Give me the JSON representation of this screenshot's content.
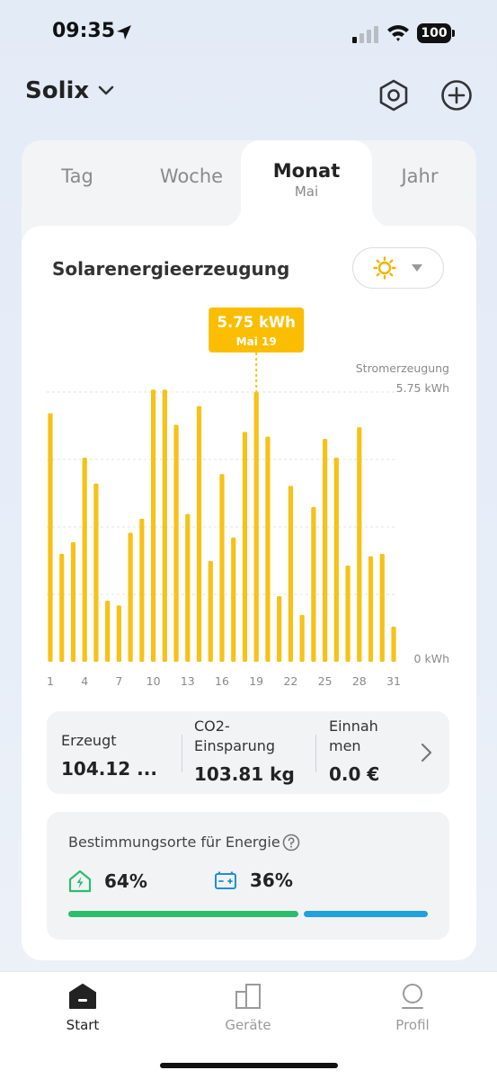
{
  "status_bar": {
    "time": "09:35",
    "battery": "100",
    "icons": [
      "location-arrow-icon",
      "cellular-signal-icon",
      "wifi-icon",
      "battery-icon"
    ]
  },
  "header": {
    "title": "Solix",
    "icons": [
      "chevron-down-icon",
      "settings-hexagon-icon",
      "add-circle-icon"
    ]
  },
  "tabs": {
    "day": "Tag",
    "week": "Woche",
    "month": "Monat",
    "month_sub": "Mai",
    "year": "Jahr"
  },
  "panel": {
    "title": "Solarenergieerzeugung",
    "weather_icon": "sun-icon"
  },
  "chart_data": {
    "type": "bar",
    "x": [
      1,
      2,
      3,
      4,
      5,
      6,
      7,
      8,
      9,
      10,
      11,
      12,
      13,
      14,
      15,
      16,
      17,
      18,
      19,
      20,
      21,
      22,
      23,
      24,
      25,
      26,
      27,
      28,
      29,
      30,
      31
    ],
    "x_tick_labels": [
      "1",
      "4",
      "7",
      "10",
      "13",
      "16",
      "19",
      "22",
      "25",
      "28",
      "31"
    ],
    "values": [
      5.3,
      2.3,
      2.55,
      4.35,
      3.8,
      1.3,
      1.2,
      2.75,
      3.05,
      5.8,
      5.8,
      5.05,
      3.15,
      5.45,
      2.15,
      4.0,
      2.65,
      4.9,
      5.75,
      4.8,
      1.4,
      3.75,
      1.0,
      3.3,
      4.75,
      4.35,
      2.05,
      5.0,
      2.25,
      2.3,
      0.75
    ],
    "y_top_label": "5.75 kWh",
    "y_bottom_label": "0 kWh",
    "ylabel": "Stromerzeugung",
    "ylim": [
      0,
      5.75
    ],
    "grid": true,
    "color": "#f7c217",
    "tooltip": {
      "value": "5.75 kWh",
      "date": "Mai 19",
      "index": 19
    }
  },
  "stats": {
    "generated_label": "Erzeugt",
    "generated_value": "104.12 ...",
    "co2_label_line1": "CO2-",
    "co2_label_line2": "Einsparung",
    "co2_value": "103.81 kg",
    "income_label_line1": "Einnah",
    "income_label_line2": "men",
    "income_value": "0.0 €"
  },
  "destination": {
    "title": "Bestimmungsorte für Energie",
    "home_percent": "64%",
    "battery_percent": "36%",
    "home_share": 0.64,
    "battery_share": 0.36,
    "home_color": "#2bbd6e",
    "battery_color": "#1ea2dc"
  },
  "nav": {
    "start": "Start",
    "devices": "Geräte",
    "profile": "Profil",
    "active_color": "#222222",
    "inactive_color": "#9a9a9a"
  }
}
